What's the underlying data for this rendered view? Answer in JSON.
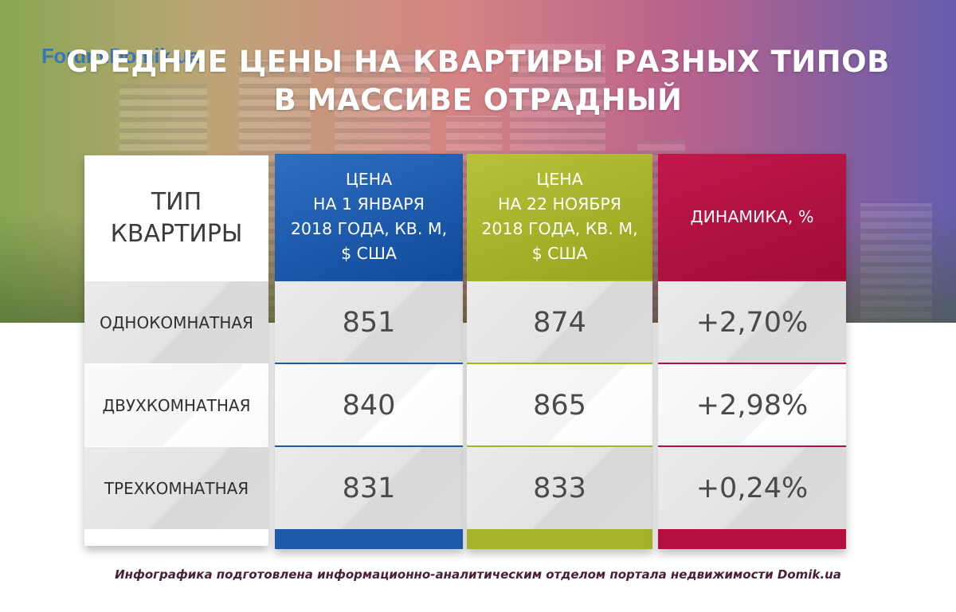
{
  "watermark": "Forum.Domik.ua",
  "title_line1": "СРЕДНИЕ ЦЕНЫ НА КВАРТИРЫ РАЗНЫХ ТИПОВ",
  "title_line2": "В МАССИВЕ ОТРАДНЫЙ",
  "chart_data": {
    "type": "table",
    "columns": [
      [
        "ТИП",
        "КВАРТИРЫ"
      ],
      [
        "ЦЕНА",
        "НА 1 ЯНВАРЯ",
        "2018 ГОДА, КВ. М,",
        "$ США"
      ],
      [
        "ЦЕНА",
        "НА 22 НОЯБРЯ",
        "2018 ГОДА, КВ. М,",
        "$ США"
      ],
      [
        "ДИНАМИКА, %"
      ]
    ],
    "rows": [
      [
        "ОДНОКОМНАТНАЯ",
        "851",
        "874",
        "+2,70%"
      ],
      [
        "ДВУХКОМНАТНАЯ",
        "840",
        "865",
        "+2,98%"
      ],
      [
        "ТРЕХКОМНАТНАЯ",
        "831",
        "833",
        "+0,24%"
      ]
    ],
    "column_colors": [
      "#ffffff",
      "#1e5aa8",
      "#a6b227",
      "#b4103f"
    ]
  },
  "footer": "Инфографика подготовлена информационно-аналитическим отделом портала недвижимости Domik.ua"
}
